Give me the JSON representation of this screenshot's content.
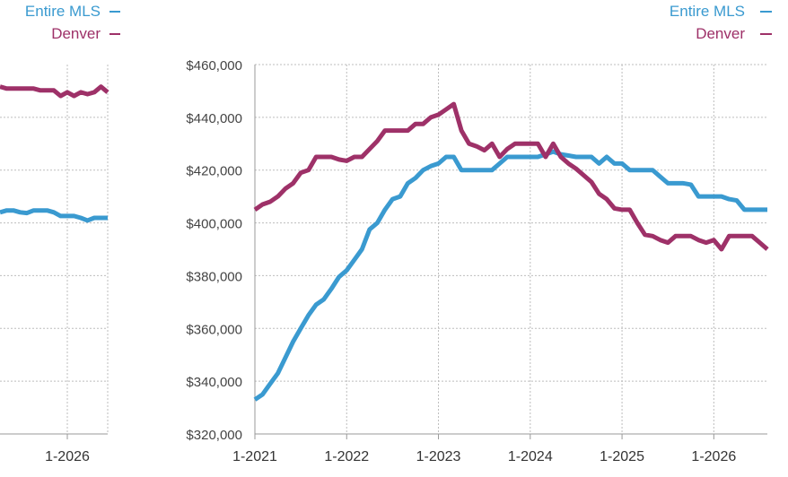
{
  "chart_data": [
    {
      "type": "line",
      "title": "",
      "xlabel": "",
      "ylabel": "",
      "x_tick_labels": [
        "1-2026"
      ],
      "legend": {
        "placement": "top-right"
      },
      "series": [
        {
          "name": "Entire MLS",
          "color": "#3a9ad0",
          "x": [
            2025.0,
            2025.1,
            2025.2,
            2025.3,
            2025.4,
            2025.5,
            2025.6,
            2025.7,
            2025.8,
            2025.9,
            2026.0,
            2026.1,
            2026.2,
            2026.3,
            2026.4,
            2026.5,
            2026.6
          ],
          "y": [
            0.6,
            0.605,
            0.605,
            0.6,
            0.598,
            0.605,
            0.605,
            0.605,
            0.6,
            0.59,
            0.59,
            0.59,
            0.585,
            0.578,
            0.585,
            0.585,
            0.585
          ]
        },
        {
          "name": "Denver",
          "color": "#9e3168",
          "x": [
            2025.0,
            2025.1,
            2025.2,
            2025.3,
            2025.4,
            2025.5,
            2025.6,
            2025.7,
            2025.8,
            2025.9,
            2026.0,
            2026.1,
            2026.2,
            2026.3,
            2026.4,
            2026.5,
            2026.6
          ],
          "y": [
            0.94,
            0.935,
            0.935,
            0.935,
            0.935,
            0.935,
            0.93,
            0.93,
            0.93,
            0.915,
            0.925,
            0.915,
            0.925,
            0.92,
            0.925,
            0.94,
            0.925
          ]
        }
      ]
    },
    {
      "type": "line",
      "title": "",
      "xlabel": "",
      "ylabel": "",
      "x_categories": [
        "1-2021",
        "1-2022",
        "1-2023",
        "1-2024",
        "1-2025",
        "1-2026"
      ],
      "y_tick_labels": [
        "$320,000",
        "$340,000",
        "$360,000",
        "$380,000",
        "$400,000",
        "$420,000",
        "$440,000",
        "$460,000"
      ],
      "xlim": [
        "1-2021",
        "8-2026"
      ],
      "ylim": [
        320000,
        460000
      ],
      "grid": true,
      "legend": {
        "placement": "top-right"
      },
      "series": [
        {
          "name": "Entire MLS",
          "color": "#3a9ad0",
          "x": [
            "1-2021",
            "2-2021",
            "3-2021",
            "4-2021",
            "5-2021",
            "6-2021",
            "7-2021",
            "8-2021",
            "9-2021",
            "10-2021",
            "11-2021",
            "12-2021",
            "1-2022",
            "2-2022",
            "3-2022",
            "4-2022",
            "5-2022",
            "6-2022",
            "7-2022",
            "8-2022",
            "9-2022",
            "10-2022",
            "11-2022",
            "12-2022",
            "1-2023",
            "2-2023",
            "3-2023",
            "4-2023",
            "5-2023",
            "6-2023",
            "7-2023",
            "8-2023",
            "9-2023",
            "10-2023",
            "11-2023",
            "12-2023",
            "1-2024",
            "2-2024",
            "3-2024",
            "4-2024",
            "5-2024",
            "6-2024",
            "7-2024",
            "8-2024",
            "9-2024",
            "10-2024",
            "11-2024",
            "12-2024",
            "1-2025",
            "2-2025",
            "3-2025",
            "4-2025",
            "5-2025",
            "6-2025",
            "7-2025",
            "8-2025",
            "9-2025",
            "10-2025",
            "11-2025",
            "12-2025",
            "1-2026",
            "2-2026",
            "3-2026",
            "4-2026",
            "5-2026",
            "6-2026",
            "7-2026",
            "8-2026"
          ],
          "y": [
            333000,
            335000,
            339000,
            343000,
            349000,
            355000,
            360000,
            365000,
            369000,
            371000,
            375000,
            379500,
            382000,
            386000,
            390000,
            397500,
            400000,
            405000,
            409000,
            410000,
            415000,
            417000,
            420000,
            421500,
            422500,
            425000,
            425000,
            420000,
            420000,
            420000,
            420000,
            420000,
            422500,
            425000,
            425000,
            425000,
            425000,
            425000,
            426000,
            427000,
            426000,
            425500,
            425000,
            425000,
            425000,
            422500,
            425000,
            422500,
            422500,
            420000,
            420000,
            420000,
            420000,
            417500,
            415000,
            415000,
            415000,
            414500,
            410000,
            410000,
            410000,
            410000,
            409000,
            408500,
            405000,
            405000,
            405000,
            405000
          ]
        },
        {
          "name": "Denver",
          "color": "#9e3168",
          "x": [
            "1-2021",
            "2-2021",
            "3-2021",
            "4-2021",
            "5-2021",
            "6-2021",
            "7-2021",
            "8-2021",
            "9-2021",
            "10-2021",
            "11-2021",
            "12-2021",
            "1-2022",
            "2-2022",
            "3-2022",
            "4-2022",
            "5-2022",
            "6-2022",
            "7-2022",
            "8-2022",
            "9-2022",
            "10-2022",
            "11-2022",
            "12-2022",
            "1-2023",
            "2-2023",
            "3-2023",
            "4-2023",
            "5-2023",
            "6-2023",
            "7-2023",
            "8-2023",
            "9-2023",
            "10-2023",
            "11-2023",
            "12-2023",
            "1-2024",
            "2-2024",
            "3-2024",
            "4-2024",
            "5-2024",
            "6-2024",
            "7-2024",
            "8-2024",
            "9-2024",
            "10-2024",
            "11-2024",
            "12-2024",
            "1-2025",
            "2-2025",
            "3-2025",
            "4-2025",
            "5-2025",
            "6-2025",
            "7-2025",
            "8-2025",
            "9-2025",
            "10-2025",
            "11-2025",
            "12-2025",
            "1-2026",
            "2-2026",
            "3-2026",
            "4-2026",
            "5-2026",
            "6-2026",
            "7-2026",
            "8-2026"
          ],
          "y": [
            405000,
            407000,
            408000,
            410000,
            413000,
            415000,
            419000,
            420000,
            425000,
            425000,
            425000,
            424000,
            423500,
            425000,
            425000,
            428000,
            431000,
            435000,
            435000,
            435000,
            435000,
            437500,
            437500,
            440000,
            441000,
            443000,
            445000,
            435000,
            430000,
            429000,
            427500,
            430000,
            425000,
            428000,
            430000,
            430000,
            430000,
            430000,
            425000,
            430000,
            425000,
            422500,
            420500,
            418000,
            415500,
            411000,
            409000,
            405500,
            405000,
            405000,
            400000,
            395500,
            395000,
            393500,
            392500,
            395000,
            395000,
            395000,
            393500,
            392500,
            393500,
            390000,
            395000,
            395000,
            395000,
            395000,
            392500,
            390000
          ]
        }
      ]
    }
  ]
}
